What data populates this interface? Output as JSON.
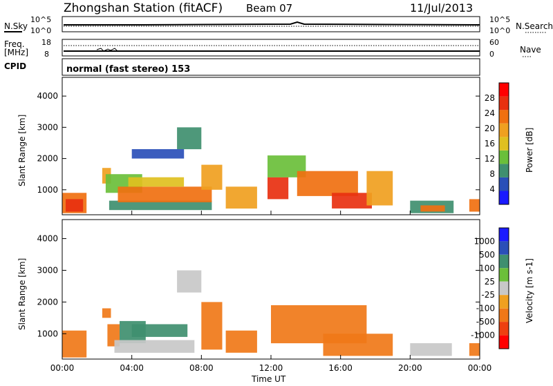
{
  "header": {
    "title": "Zhongshan Station (fitACF)",
    "beam": "Beam 07",
    "date": "11/Jul/2013"
  },
  "status_panel": {
    "nsky_label": "N.Sky",
    "nsky_top": "10^5",
    "nsky_bottom": "10^0",
    "nsearch_label": "N.Search",
    "nsearch_top": "10^5",
    "nsearch_bottom": "10^0",
    "freq_label": "Freq.",
    "freq_unit": "[MHz]",
    "freq_top": "18",
    "freq_bottom": "8",
    "nave_label": "Nave",
    "nave_top": "60",
    "nave_bottom": "0",
    "cpid_label": "CPID",
    "cpid_text": "normal (fast stereo) 153"
  },
  "colors": {
    "frame": "#000000",
    "power_scale": [
      "#1a1aff",
      "#2a4fb8",
      "#3f8f6f",
      "#6abf3a",
      "#e0c020",
      "#f0a020",
      "#f07010",
      "#e83010",
      "#ff0000"
    ],
    "velocity_scale": [
      "#ff0000",
      "#ee4010",
      "#f07818",
      "#f0a020",
      "#c8c8c8",
      "#6cbf3a",
      "#3f8f6f",
      "#2a4fb8",
      "#1a1aff"
    ]
  },
  "chart_data": [
    {
      "type": "heatmap",
      "name": "power",
      "ylabel": "Slant Range [km]",
      "yticks": [
        "1000",
        "2000",
        "3000",
        "4000"
      ],
      "ylim": [
        200,
        4600
      ],
      "xlim": [
        0,
        24
      ],
      "colorbar_label": "Power [dB]",
      "colorbar_ticks": [
        "4",
        "8",
        "12",
        "16",
        "20",
        "24",
        "28"
      ],
      "colorbar_range": [
        0,
        32
      ],
      "bands": [
        {
          "t0": 0.0,
          "t1": 1.4,
          "r0": 250,
          "r1": 900,
          "level": 22
        },
        {
          "t0": 0.2,
          "t1": 1.2,
          "r0": 300,
          "r1": 700,
          "level": 28
        },
        {
          "t0": 2.3,
          "t1": 2.8,
          "r0": 1200,
          "r1": 1700,
          "level": 18
        },
        {
          "t0": 2.5,
          "t1": 4.6,
          "r0": 900,
          "r1": 1500,
          "level": 14
        },
        {
          "t0": 2.7,
          "t1": 8.6,
          "r0": 350,
          "r1": 650,
          "level": 10
        },
        {
          "t0": 3.2,
          "t1": 8.6,
          "r0": 600,
          "r1": 1100,
          "level": 22
        },
        {
          "t0": 3.8,
          "t1": 7.0,
          "r0": 1100,
          "r1": 1400,
          "level": 16
        },
        {
          "t0": 4.0,
          "t1": 7.0,
          "r0": 2000,
          "r1": 2300,
          "level": 6
        },
        {
          "t0": 6.6,
          "t1": 8.0,
          "r0": 2300,
          "r1": 3000,
          "level": 8
        },
        {
          "t0": 8.0,
          "t1": 9.2,
          "r0": 1000,
          "r1": 1800,
          "level": 20
        },
        {
          "t0": 9.4,
          "t1": 11.2,
          "r0": 400,
          "r1": 1100,
          "level": 18
        },
        {
          "t0": 11.8,
          "t1": 13.0,
          "r0": 700,
          "r1": 1400,
          "level": 26
        },
        {
          "t0": 11.8,
          "t1": 14.0,
          "r0": 1400,
          "r1": 2100,
          "level": 14
        },
        {
          "t0": 13.5,
          "t1": 17.0,
          "r0": 800,
          "r1": 1600,
          "level": 24
        },
        {
          "t0": 15.5,
          "t1": 17.8,
          "r0": 400,
          "r1": 900,
          "level": 28
        },
        {
          "t0": 17.5,
          "t1": 19.0,
          "r0": 500,
          "r1": 1600,
          "level": 18
        },
        {
          "t0": 20.0,
          "t1": 22.5,
          "r0": 250,
          "r1": 650,
          "level": 10
        },
        {
          "t0": 20.6,
          "t1": 22.0,
          "r0": 300,
          "r1": 500,
          "level": 24
        },
        {
          "t0": 23.4,
          "t1": 24.0,
          "r0": 300,
          "r1": 700,
          "level": 22
        }
      ]
    },
    {
      "type": "heatmap",
      "name": "velocity",
      "ylabel": "Slant Range [km]",
      "yticks": [
        "1000",
        "2000",
        "3000",
        "4000"
      ],
      "ylim": [
        200,
        4600
      ],
      "xlim": [
        0,
        24
      ],
      "xlabel": "Time UT",
      "xticks": [
        "00:00",
        "04:00",
        "08:00",
        "12:00",
        "16:00",
        "20:00",
        "00:00"
      ],
      "colorbar_label": "Velocity [m s-1]",
      "colorbar_ticks": [
        "1000",
        "500",
        "100",
        "25",
        "-25",
        "-100",
        "-500",
        "-1000"
      ],
      "bands": [
        {
          "t0": 0.0,
          "t1": 1.4,
          "r0": 250,
          "r1": 1100,
          "level": -300
        },
        {
          "t0": 2.3,
          "t1": 2.8,
          "r0": 1500,
          "r1": 1800,
          "level": -200
        },
        {
          "t0": 2.6,
          "t1": 3.3,
          "r0": 600,
          "r1": 1300,
          "level": -150
        },
        {
          "t0": 3.3,
          "t1": 4.8,
          "r0": 700,
          "r1": 1400,
          "level": 400
        },
        {
          "t0": 4.0,
          "t1": 7.2,
          "r0": 900,
          "r1": 1300,
          "level": 150
        },
        {
          "t0": 3.0,
          "t1": 7.6,
          "r0": 400,
          "r1": 800,
          "level": 10
        },
        {
          "t0": 6.6,
          "t1": 8.0,
          "r0": 2300,
          "r1": 3000,
          "level": 0
        },
        {
          "t0": 8.0,
          "t1": 9.2,
          "r0": 500,
          "r1": 2000,
          "level": -300
        },
        {
          "t0": 9.4,
          "t1": 11.2,
          "r0": 400,
          "r1": 1100,
          "level": -200
        },
        {
          "t0": 12.0,
          "t1": 17.5,
          "r0": 700,
          "r1": 1900,
          "level": -250
        },
        {
          "t0": 15.0,
          "t1": 19.0,
          "r0": 300,
          "r1": 1000,
          "level": -400
        },
        {
          "t0": 20.0,
          "t1": 22.4,
          "r0": 300,
          "r1": 700,
          "level": 20
        },
        {
          "t0": 23.4,
          "t1": 24.0,
          "r0": 300,
          "r1": 700,
          "level": -150
        }
      ]
    }
  ]
}
